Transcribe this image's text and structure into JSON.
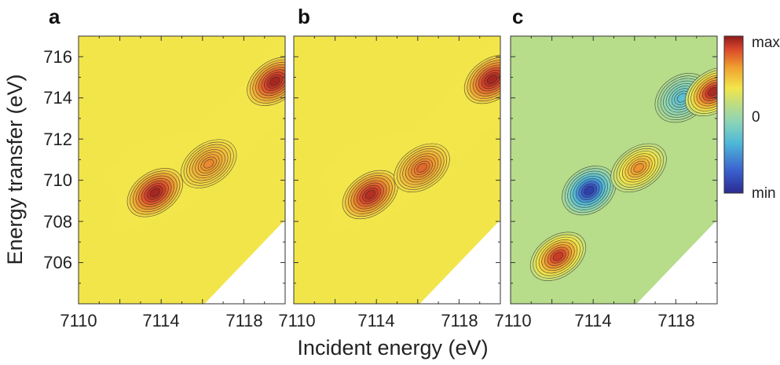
{
  "chart_data": [
    {
      "panel": "a",
      "type": "heatmap",
      "xlim": [
        7110,
        7120
      ],
      "ylim": [
        704,
        717
      ],
      "peaks": [
        {
          "x": 7113.7,
          "y": 709.4,
          "level": 1.0
        },
        {
          "x": 7116.3,
          "y": 710.8,
          "level": 0.6
        },
        {
          "x": 7119.5,
          "y": 714.8,
          "level": 1.0
        }
      ],
      "background_level": 0.72,
      "contours": true
    },
    {
      "panel": "b",
      "type": "heatmap",
      "xlim": [
        7110,
        7120
      ],
      "ylim": [
        704,
        717
      ],
      "peaks": [
        {
          "x": 7113.7,
          "y": 709.3,
          "level": 0.95
        },
        {
          "x": 7116.2,
          "y": 710.6,
          "level": 0.7
        },
        {
          "x": 7119.6,
          "y": 714.9,
          "level": 1.0
        }
      ],
      "background_level": 0.72,
      "contours": true
    },
    {
      "panel": "c",
      "type": "heatmap",
      "xlim": [
        7110,
        7120
      ],
      "ylim": [
        704,
        717
      ],
      "peaks": [
        {
          "x": 7112.3,
          "y": 706.3,
          "level": 0.9
        },
        {
          "x": 7113.8,
          "y": 709.5,
          "level": -1.0
        },
        {
          "x": 7116.2,
          "y": 710.6,
          "level": 0.6
        },
        {
          "x": 7118.3,
          "y": 714.0,
          "level": -0.5
        },
        {
          "x": 7119.8,
          "y": 714.3,
          "level": 1.0
        }
      ],
      "background_level": 0.0,
      "contours": true
    }
  ],
  "panels": {
    "a": {
      "letter": "a"
    },
    "b": {
      "letter": "b"
    },
    "c": {
      "letter": "c"
    }
  },
  "axes": {
    "ylabel": "Energy transfer (eV)",
    "xlabel": "Incident energy (eV)",
    "yticks": [
      "706",
      "708",
      "710",
      "712",
      "714",
      "716"
    ],
    "xticks_a": [
      "7110",
      "7114",
      "7118"
    ],
    "xticks_b": [
      "7110",
      "7114",
      "7118"
    ],
    "xticks_c": [
      "7110",
      "7114",
      "7118"
    ],
    "edge_tick": "7110"
  },
  "colorbar": {
    "max_label": "max",
    "zero_label": "0",
    "min_label": "min",
    "colors": [
      "#2b2b8f",
      "#3a5fcf",
      "#4fb8d8",
      "#8ad4b8",
      "#b7dc8a",
      "#f2e64a",
      "#f0a030",
      "#d9452a",
      "#8e1a1a"
    ]
  }
}
